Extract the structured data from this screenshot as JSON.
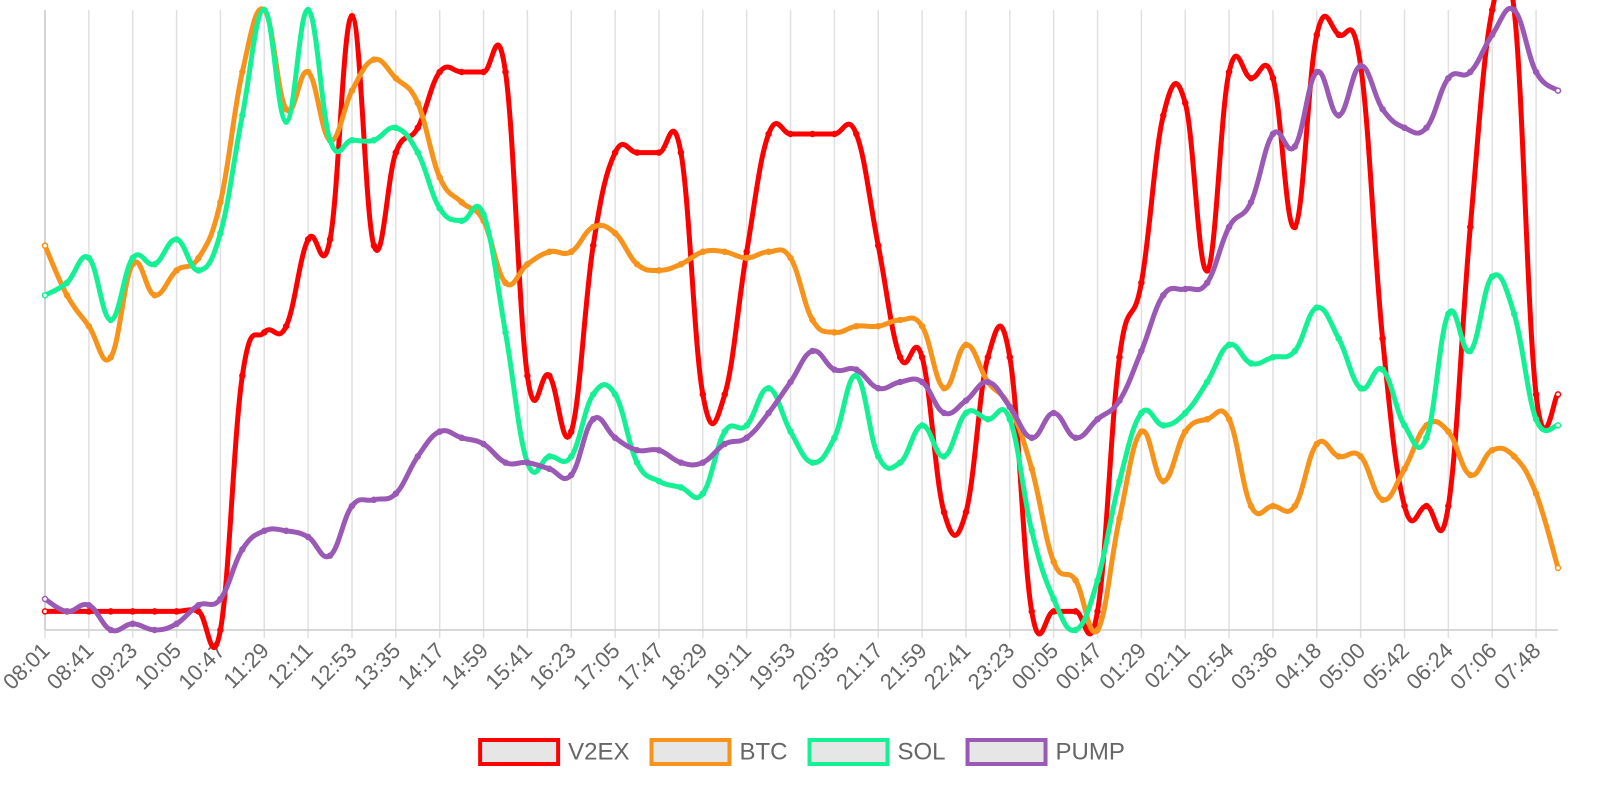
{
  "chart_data": {
    "type": "line",
    "categories": [
      "08:01",
      null,
      "08:41",
      null,
      "09:23",
      null,
      "10:05",
      null,
      "10:47",
      null,
      "11:29",
      null,
      "12:11",
      null,
      "12:53",
      null,
      "13:35",
      null,
      "14:17",
      null,
      "14:59",
      null,
      "15:41",
      null,
      "16:23",
      null,
      "17:05",
      null,
      "17:47",
      null,
      "18:29",
      null,
      "19:11",
      null,
      "19:53",
      null,
      "20:35",
      null,
      "21:17",
      null,
      "21:59",
      null,
      "22:41",
      null,
      "23:23",
      null,
      "00:05",
      null,
      "00:47",
      null,
      "01:29",
      null,
      "02:11",
      null,
      "02:54",
      null,
      "03:36",
      null,
      "04:18",
      null,
      "05:00",
      null,
      "05:42",
      null,
      "06:24",
      null,
      "07:06",
      null,
      "07:48",
      null
    ],
    "ylim": [
      0,
      100
    ],
    "grid": true,
    "legend": "bottom",
    "series": [
      {
        "name": "V2EX",
        "color": "#ff0000",
        "values": [
          3,
          3,
          3,
          3,
          3,
          3,
          3,
          3,
          0,
          41,
          48,
          49,
          63,
          63,
          99,
          62,
          77,
          81,
          90,
          90,
          90,
          90,
          41,
          41,
          32,
          62,
          77,
          77,
          77,
          77,
          38,
          38,
          61,
          80,
          80,
          80,
          80,
          80,
          62,
          44,
          44,
          19,
          19,
          44,
          44,
          3,
          3,
          3,
          3,
          44,
          56,
          83,
          85,
          58,
          90,
          89,
          89,
          65,
          96,
          96,
          91,
          47,
          20,
          20,
          20,
          65,
          100,
          100,
          38,
          38
        ]
      },
      {
        "name": "BTC",
        "color": "#f7931a",
        "values": [
          62,
          54,
          49,
          44,
          59,
          54,
          58,
          60,
          69,
          90,
          100,
          84,
          90,
          79,
          87,
          92,
          89,
          85,
          73,
          69,
          66,
          56,
          59,
          61,
          61,
          65,
          64,
          59,
          58,
          59,
          61,
          61,
          60,
          61,
          60,
          50,
          48,
          49,
          49,
          50,
          49,
          39,
          46,
          40,
          36,
          26,
          11,
          8,
          0,
          18,
          32,
          24,
          32,
          34,
          34,
          20,
          20,
          20,
          30,
          28,
          28,
          21,
          26,
          33,
          32,
          25,
          29,
          28,
          22,
          10
        ]
      },
      {
        "name": "SOL",
        "color": "#14f195",
        "values": [
          54,
          56,
          60,
          50,
          60,
          59,
          63,
          58,
          64,
          83,
          100,
          82,
          100,
          79,
          79,
          79,
          81,
          77,
          68,
          66,
          67,
          48,
          27,
          28,
          28,
          38,
          38,
          27,
          24,
          23,
          22,
          32,
          33,
          39,
          32,
          27,
          31,
          41,
          28,
          27,
          33,
          28,
          35,
          34,
          34,
          16,
          5,
          0,
          8,
          24,
          35,
          33,
          35,
          40,
          46,
          43,
          44,
          45,
          52,
          47,
          39,
          42,
          33,
          31,
          51,
          45,
          57,
          51,
          34,
          33
        ]
      },
      {
        "name": "PUMP",
        "color": "#9b59b6",
        "values": [
          5,
          3,
          4,
          0,
          1,
          0,
          1,
          4,
          5,
          13,
          16,
          16,
          15,
          12,
          20,
          21,
          22,
          28,
          32,
          31,
          30,
          27,
          27,
          26,
          25,
          34,
          31,
          29,
          29,
          27,
          27,
          30,
          31,
          35,
          40,
          45,
          42,
          42,
          39,
          40,
          40,
          35,
          37,
          40,
          36,
          31,
          35,
          31,
          34,
          37,
          45,
          54,
          55,
          56,
          65,
          69,
          80,
          78,
          90,
          83,
          91,
          84,
          81,
          81,
          89,
          90,
          96,
          100,
          90,
          87
        ]
      }
    ]
  }
}
